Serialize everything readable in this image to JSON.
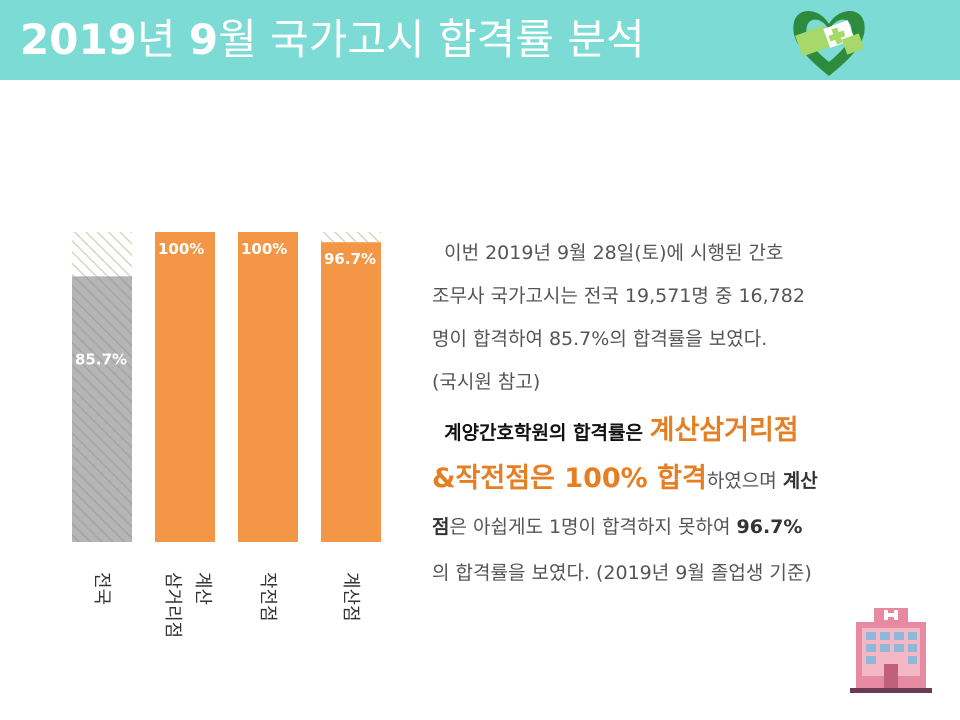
{
  "header": {
    "title_year": "2019",
    "title_unit1": "년 ",
    "title_month": "9",
    "title_rest": "월 국가고시 합격률 분석",
    "bg_color": "#7cdbd5"
  },
  "chart_data": {
    "type": "bar",
    "categories": [
      "전국",
      "계산 삼거리점",
      "작전점",
      "계산점"
    ],
    "category_label_lines": [
      [
        "전국"
      ],
      [
        "계산",
        "삼거리점"
      ],
      [
        "작전점"
      ],
      [
        "계산점"
      ]
    ],
    "values": [
      85.7,
      100,
      100,
      96.7
    ],
    "data_labels": [
      "85.7%",
      "100%",
      "100%",
      "96.7%"
    ],
    "ylim": [
      0,
      100
    ],
    "orange_color": "#f39646",
    "gray_color": "#b3b3b3",
    "grid": false,
    "title": "",
    "xlabel": "",
    "ylabel": ""
  },
  "text": {
    "para1_line1": "이번 2019년 9월 28일(토)에 시행된 간호",
    "para1_line2": "조무사 국가고시는 전국 19,571명 중 16,782",
    "para1_line3": "명이 합격하여 85.7%의 합격률을 보였다.",
    "para1_line4": "(국시원 참고)",
    "para2_a": "계양간호학원의 합격률은 ",
    "para2_b": "계산삼거리점",
    "para2_c": "&작전점은 100% 합격",
    "para2_d": "하였으며 ",
    "para2_e": "계산",
    "para2_f": "점",
    "para2_g": "은 아쉽게도 1명이 합격하지  못하여 ",
    "para2_h": "96.7%",
    "para2_i": "의 합격률을 보였다. (2019년 9월 졸업생 기준)"
  },
  "icons": {
    "logo": "heart-cross-logo-icon",
    "hospital": "hospital-building-icon"
  }
}
